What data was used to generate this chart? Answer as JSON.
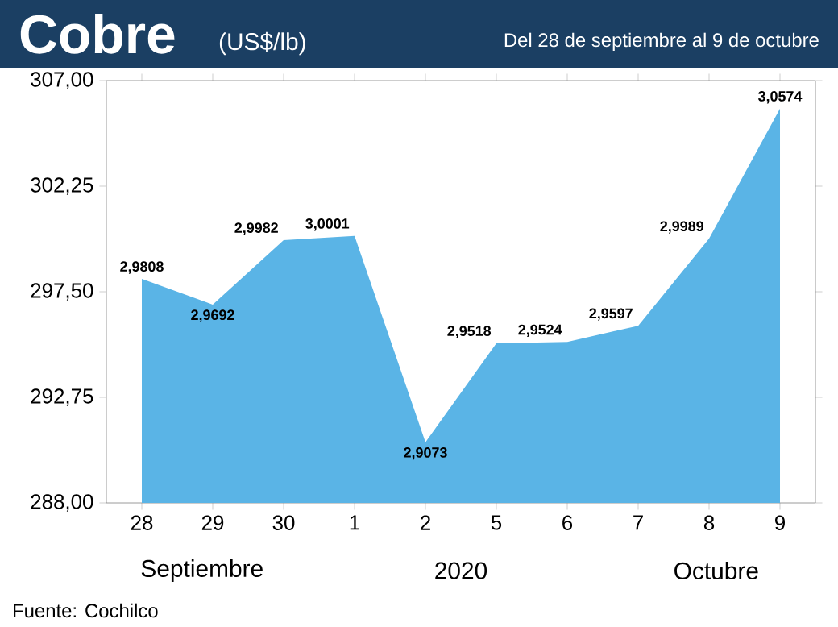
{
  "chart_data": {
    "type": "area",
    "title": "Cobre",
    "subtitle": "(US$/lb)",
    "annotations": [
      "Del 28 de septiembre al  9 de octubre",
      "Septiembre",
      "2020",
      "Octubre",
      "Fuente: Cochilco"
    ],
    "categories": [
      "28",
      "29",
      "30",
      "1",
      "2",
      "5",
      "6",
      "7",
      "8",
      "9"
    ],
    "values": [
      298.08,
      296.92,
      299.82,
      300.01,
      290.73,
      295.18,
      295.24,
      295.97,
      299.89,
      305.74
    ],
    "value_labels": [
      "2,9808",
      "2,9692",
      "2,9982",
      "3,0001",
      "2,9073",
      "2,9518",
      "2,9524",
      "2,9597",
      "2,9989",
      "3,0574"
    ],
    "color": "#5ab4e6",
    "ylim": [
      288,
      307
    ],
    "yticks": [
      {
        "value": 288,
        "label": "288,00"
      },
      {
        "value": 292.75,
        "label": "292,75"
      },
      {
        "value": 297.5,
        "label": "297,50"
      },
      {
        "value": 302.25,
        "label": "302,25"
      },
      {
        "value": 307,
        "label": "307,00"
      }
    ],
    "grid": false
  }
}
